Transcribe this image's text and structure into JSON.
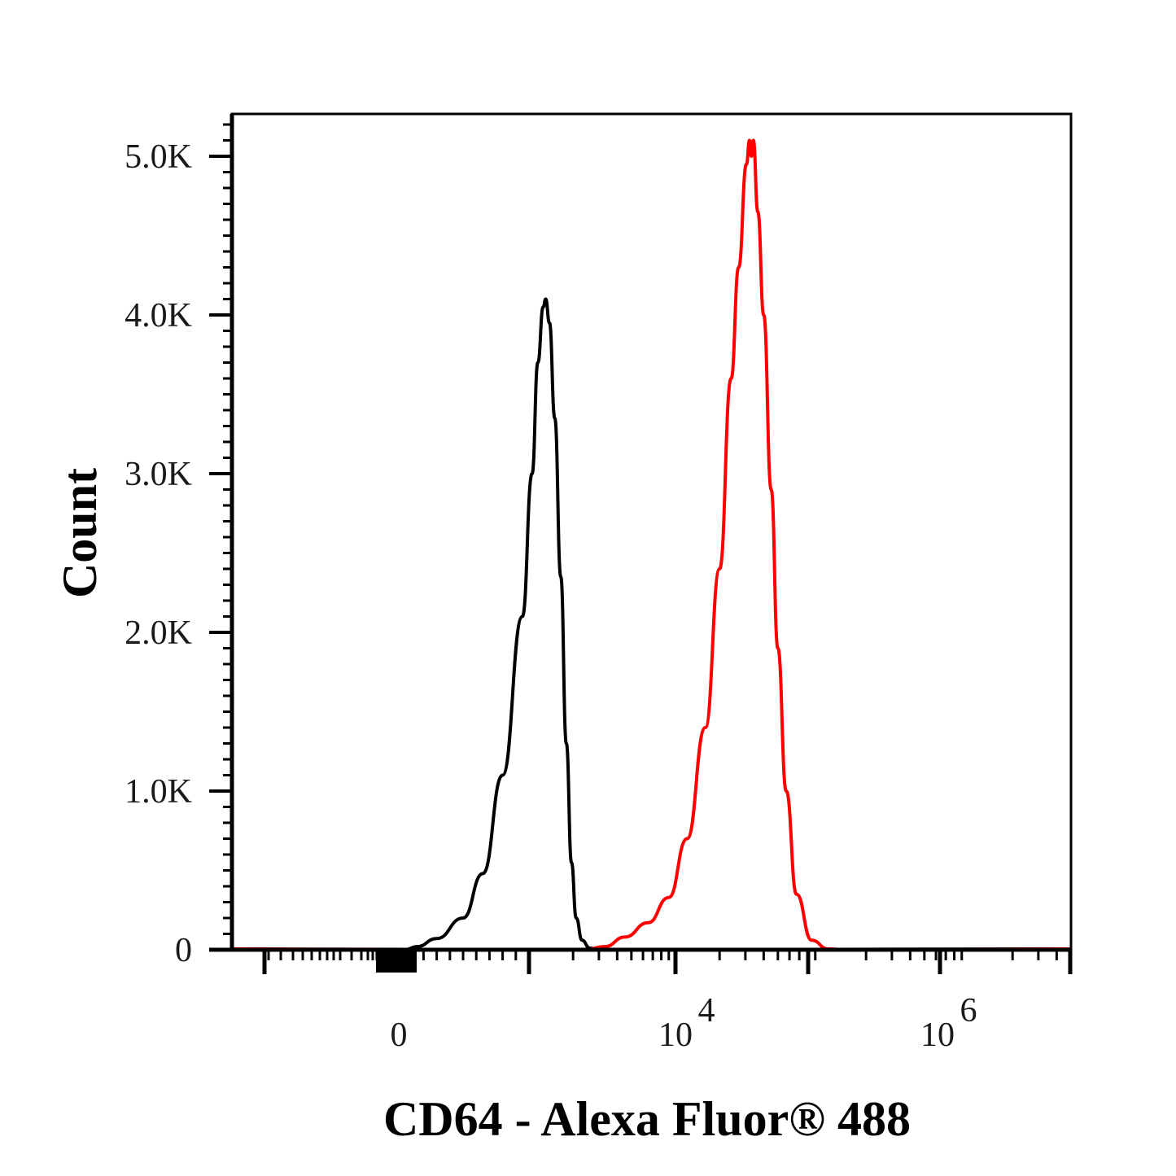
{
  "chart_data": {
    "type": "line",
    "title": "",
    "xlabel": "CD64 - Alexa Fluor® 488",
    "ylabel": "Count",
    "x_scale": "biexponential",
    "ylim": [
      0,
      5300
    ],
    "yticks": [
      {
        "value": 0,
        "label": "0"
      },
      {
        "value": 1000,
        "label": "1.0K"
      },
      {
        "value": 2000,
        "label": "2.0K"
      },
      {
        "value": 3000,
        "label": "3.0K"
      },
      {
        "value": 4000,
        "label": "4.0K"
      },
      {
        "value": 5000,
        "label": "5.0K"
      }
    ],
    "xticks": [
      {
        "value": 0,
        "label": "0"
      },
      {
        "value": 10000,
        "label": "10",
        "exponent": "4"
      },
      {
        "value": 1000000,
        "label": "10",
        "exponent": "6"
      }
    ],
    "grid": false,
    "series": [
      {
        "color": "#000000",
        "points": [
          [
            60,
            0
          ],
          [
            150,
            20
          ],
          [
            300,
            70
          ],
          [
            500,
            200
          ],
          [
            650,
            480
          ],
          [
            800,
            1100
          ],
          [
            950,
            2100
          ],
          [
            1050,
            3000
          ],
          [
            1150,
            3700
          ],
          [
            1250,
            4050
          ],
          [
            1300,
            4100
          ],
          [
            1380,
            3950
          ],
          [
            1500,
            3350
          ],
          [
            1650,
            2350
          ],
          [
            1800,
            1300
          ],
          [
            1950,
            550
          ],
          [
            2100,
            200
          ],
          [
            2300,
            60
          ],
          [
            2600,
            10
          ],
          [
            3000,
            0
          ]
        ]
      },
      {
        "color": "#ff0000",
        "points": [
          [
            2400,
            0
          ],
          [
            3300,
            20
          ],
          [
            4500,
            80
          ],
          [
            6500,
            170
          ],
          [
            9000,
            330
          ],
          [
            12000,
            700
          ],
          [
            16000,
            1400
          ],
          [
            20000,
            2400
          ],
          [
            24000,
            3600
          ],
          [
            27000,
            4300
          ],
          [
            30500,
            4950
          ],
          [
            32000,
            5100
          ],
          [
            33000,
            5000
          ],
          [
            34000,
            5100
          ],
          [
            36500,
            4650
          ],
          [
            40000,
            4000
          ],
          [
            45000,
            2900
          ],
          [
            50000,
            1900
          ],
          [
            57000,
            1000
          ],
          [
            67000,
            350
          ],
          [
            85000,
            60
          ],
          [
            110000,
            5
          ],
          [
            150000,
            0
          ]
        ]
      }
    ]
  }
}
